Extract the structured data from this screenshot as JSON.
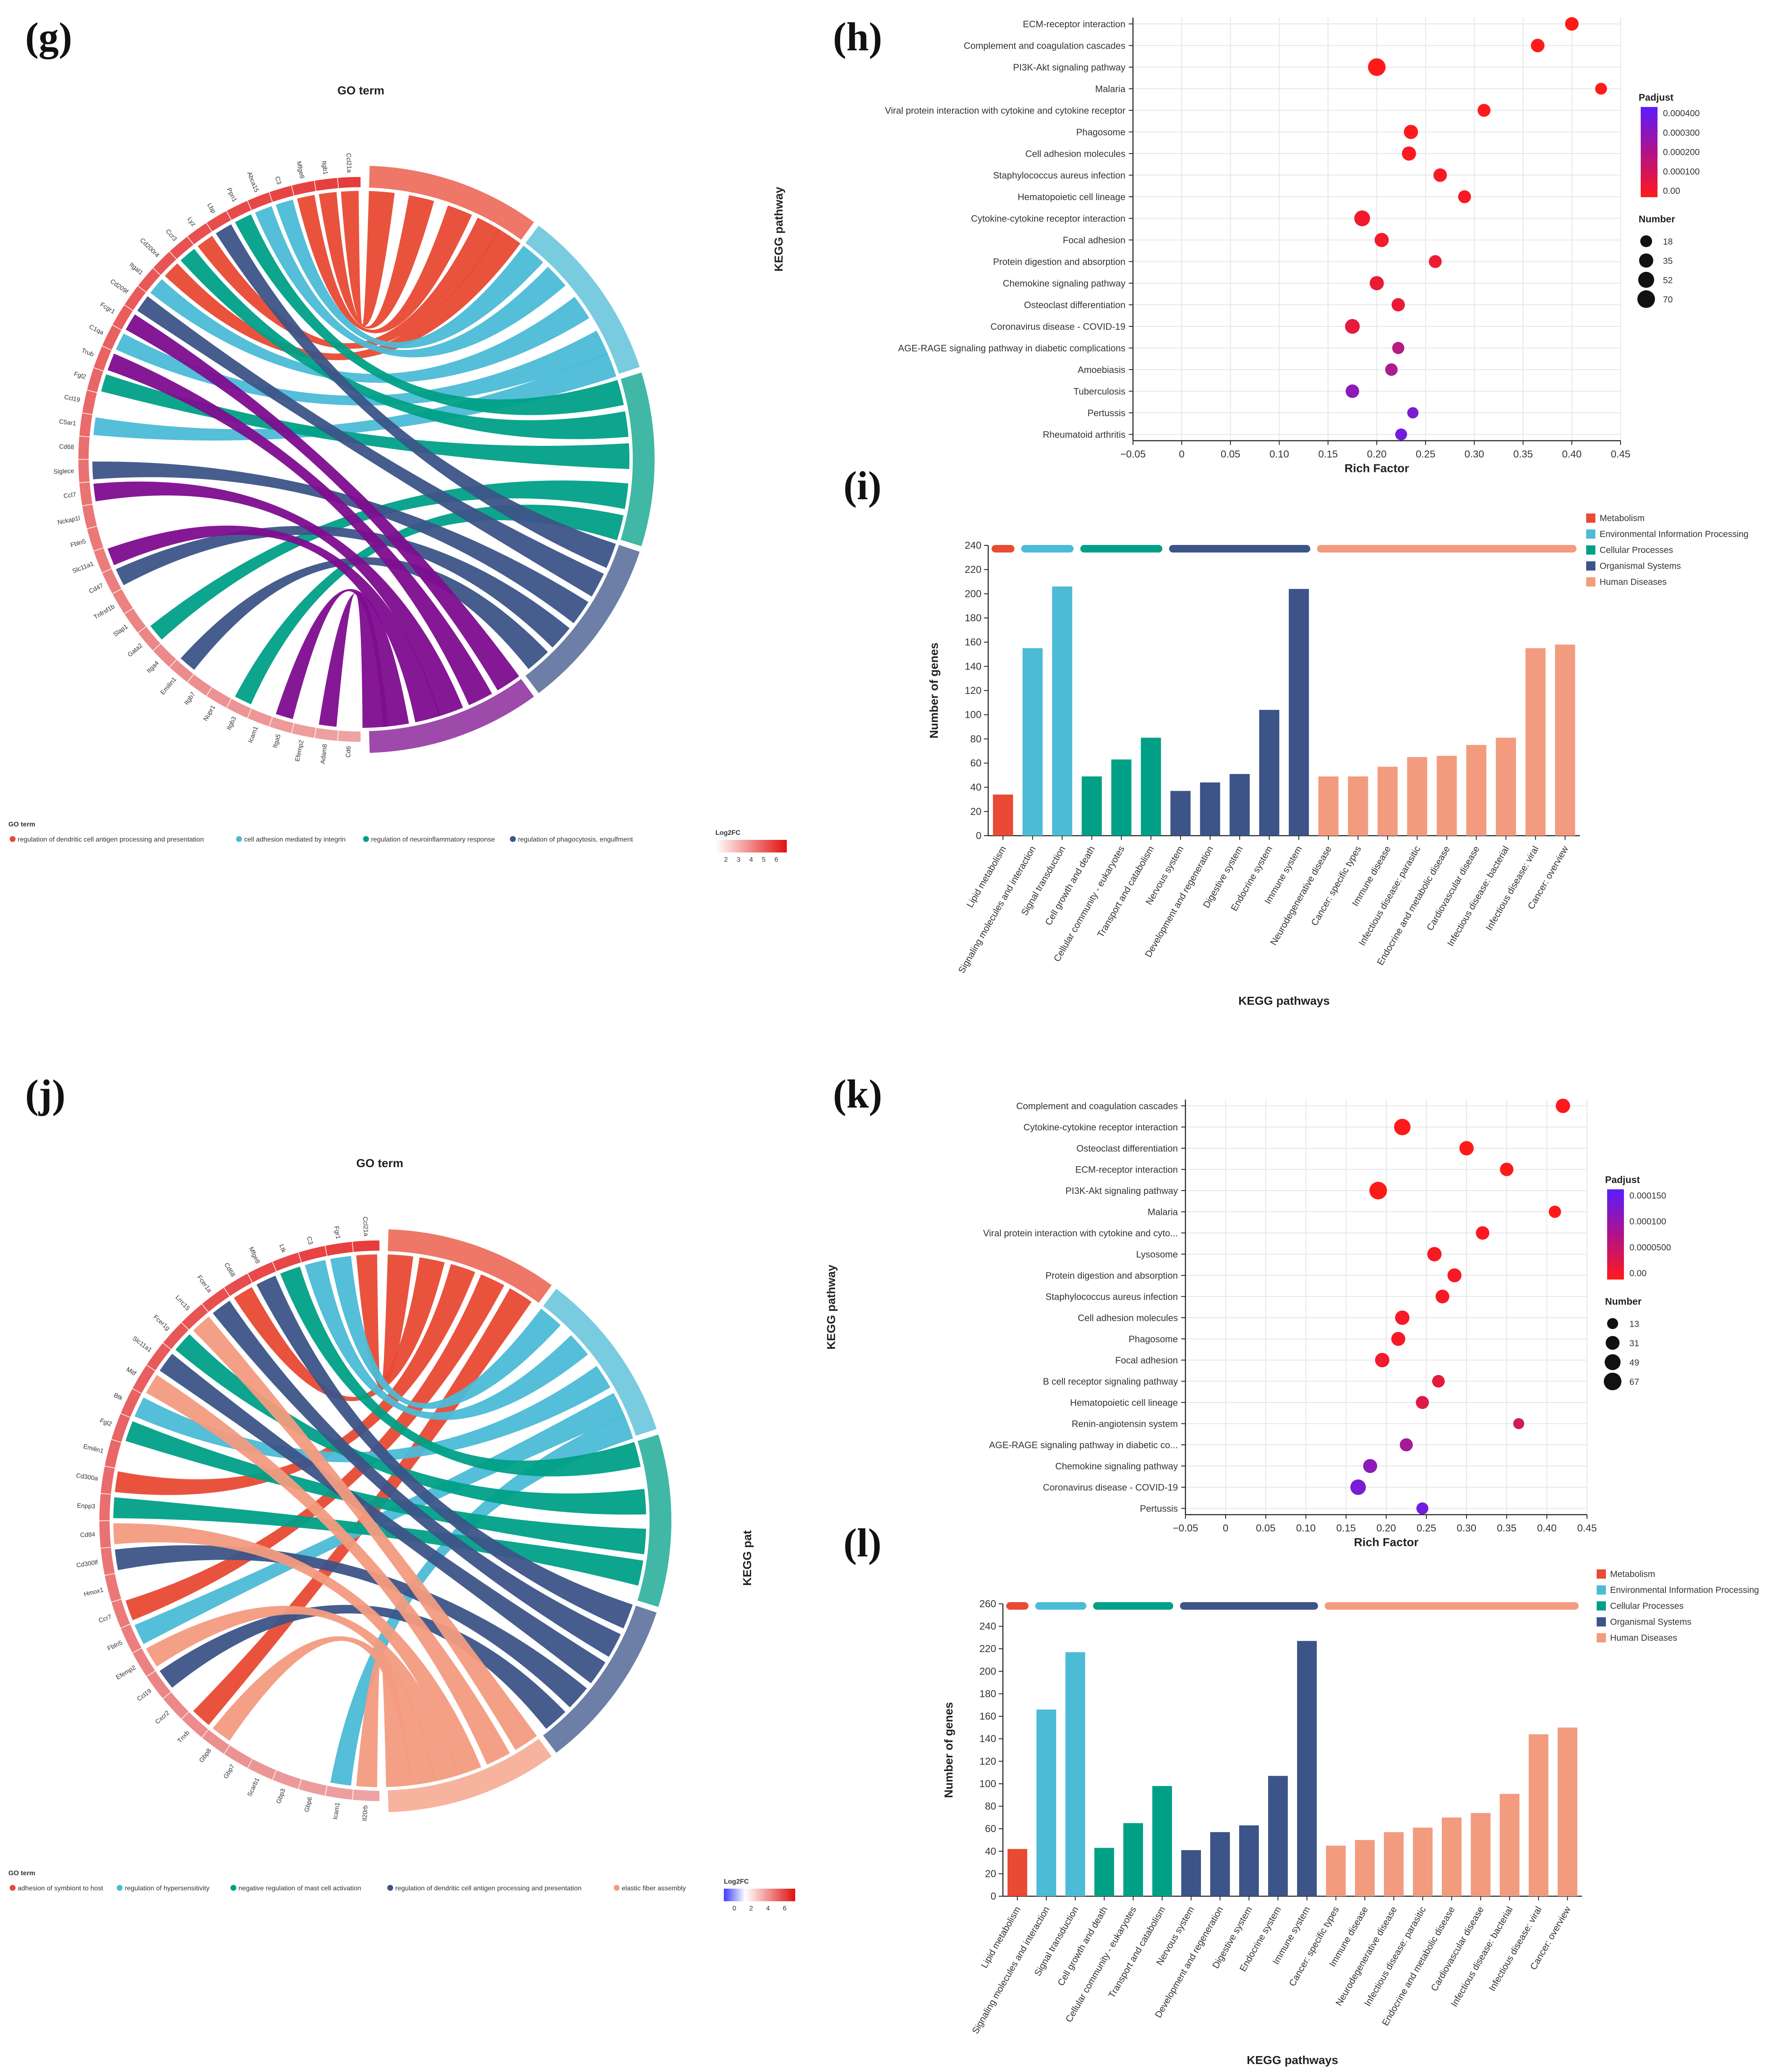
{
  "colors": {
    "red": "#e84a34",
    "cyan": "#4cbbd6",
    "teal": "#00a087",
    "navy": "#3c5488",
    "purple": "#7e0d8f",
    "salmon": "#f39b7f",
    "gene_fill": "#f0a6a6",
    "bubble_hi": "#ff1a1a",
    "bubble_lo": "#5a1cff"
  },
  "panels": {
    "g": {
      "label": "(g)",
      "title": "GO term",
      "genes": [
        "Cd6",
        "Adam8",
        "Efemp2",
        "Itga5",
        "Icam1",
        "Itgb3",
        "Nupr1",
        "Itgb7",
        "Emilin1",
        "Itga4",
        "Gata2",
        "Slap1",
        "Tnfrsf1b",
        "Cd47",
        "Slc11a1",
        "Fbln5",
        "Nckap1l",
        "Ccl7",
        "Siglece",
        "Cd68",
        "C5ar1",
        "Ccl19",
        "Fgl2",
        "Trub",
        "C1qa",
        "Fcgr1",
        "Cd209f",
        "Itgal1",
        "Cd200r4",
        "Ccr3",
        "Lyz",
        "Lbp",
        "Ppn1",
        "Abca15",
        "C3",
        "Mfge8",
        "Itgb1",
        "Ccl21a"
      ],
      "terms": [
        {
          "name": "regulation of dendritic cell antigen processing and presentation",
          "color": "#e84a34"
        },
        {
          "name": "cell adhesion mediated by integrin",
          "color": "#4cbbd6"
        },
        {
          "name": "regulation of neuroinflammatory response",
          "color": "#00a087"
        },
        {
          "name": "regulation of phagocytosis, engulfment",
          "color": "#3c5488"
        },
        {
          "name": "",
          "color": "#7e0d8f"
        }
      ],
      "legend_title": "GO term",
      "fc_title": "Log2FC",
      "fc_ticks": [
        "2",
        "3",
        "4",
        "5",
        "6"
      ]
    },
    "j": {
      "label": "(j)",
      "title": "GO term",
      "side_label": "KEGG pat",
      "genes": [
        "Il20rb",
        "Icam1",
        "Gbp6",
        "Gbp3",
        "Scarb1",
        "Gbp7",
        "Gbp8",
        "Tnxb",
        "Cxcr2",
        "Ccl19",
        "Efemp2",
        "Fbln5",
        "Ccr7",
        "Hmox1",
        "Cd300lf",
        "Cd84",
        "Enpp3",
        "Cd300a",
        "Emilin1",
        "Fgl2",
        "Btk",
        "Mitf",
        "Slc11a1",
        "Fcer1g",
        "Lrrc15",
        "Fcer1a",
        "Cd68",
        "Mfge8",
        "Ltk",
        "C3",
        "Fgr1",
        "Ccl21a"
      ],
      "terms": [
        {
          "name": "adhesion of symbiont to host",
          "color": "#e84a34"
        },
        {
          "name": "regulation of hypersensitivity",
          "color": "#4cbbd6"
        },
        {
          "name": "negative regulation of mast cell activation",
          "color": "#00a087"
        },
        {
          "name": "regulation of dendritic cell antigen processing and presentation",
          "color": "#3c5488"
        },
        {
          "name": "elastic fiber assembly",
          "color": "#f39b7f"
        }
      ],
      "legend_title": "GO term",
      "fc_title": "Log2FC",
      "fc_ticks": [
        "0",
        "2",
        "4",
        "6"
      ]
    },
    "h": {
      "label": "(h)",
      "chart_data": {
        "type": "scatter",
        "xlabel": "Rich Factor",
        "ylabel": "KEGG pathway",
        "xlim": [
          -0.05,
          0.45
        ],
        "xticks": [
          "−0.05",
          "0",
          "0.05",
          "0.10",
          "0.15",
          "0.20",
          "0.25",
          "0.30",
          "0.35",
          "0.40",
          "0.45"
        ],
        "pathways": [
          "ECM-receptor interaction",
          "Complement and coagulation cascades",
          "PI3K-Akt signaling pathway",
          "Malaria",
          "Viral protein interaction with cytokine and cytokine receptor",
          "Phagosome",
          "Cell adhesion molecules",
          "Staphylococcus aureus infection",
          "Hematopoietic cell lineage",
          "Cytokine-cytokine receptor interaction",
          "Focal adhesion",
          "Protein digestion and absorption",
          "Chemokine signaling pathway",
          "Osteoclast differentiation",
          "Coronavirus disease - COVID-19",
          "AGE-RAGE signaling pathway in diabetic complications",
          "Amoebiasis",
          "Tuberculosis",
          "Pertussis",
          "Rheumatoid arthritis"
        ],
        "rich_factor": [
          0.4,
          0.365,
          0.2,
          0.43,
          0.31,
          0.235,
          0.233,
          0.265,
          0.29,
          0.185,
          0.205,
          0.26,
          0.2,
          0.222,
          0.175,
          0.222,
          0.215,
          0.175,
          0.237,
          0.225
        ],
        "number": [
          30,
          30,
          70,
          18,
          25,
          35,
          35,
          30,
          25,
          50,
          35,
          25,
          35,
          28,
          40,
          20,
          22,
          30,
          15,
          18
        ],
        "padj_frac": [
          0.0,
          0.0,
          0.0,
          0.0,
          0.0,
          0.02,
          0.02,
          0.05,
          0.05,
          0.08,
          0.08,
          0.1,
          0.12,
          0.12,
          0.15,
          0.45,
          0.5,
          0.7,
          0.8,
          0.85
        ],
        "legend_padj_title": "Padjust",
        "legend_padj_ticks": [
          "0.000400",
          "0.000300",
          "0.000200",
          "0.000100",
          "0.00"
        ],
        "legend_num_title": "Number",
        "legend_num_values": [
          "18",
          "35",
          "52",
          "70"
        ]
      }
    },
    "k": {
      "label": "(k)",
      "chart_data": {
        "type": "scatter",
        "xlabel": "Rich Factor",
        "ylabel": "KEGG pathway",
        "xlim": [
          -0.05,
          0.45
        ],
        "xticks": [
          "−0.05",
          "0",
          "0.05",
          "0.10",
          "0.15",
          "0.20",
          "0.25",
          "0.30",
          "0.35",
          "0.40",
          "0.45"
        ],
        "pathways": [
          "Complement and coagulation cascades",
          "Cytokine-cytokine receptor interaction",
          "Osteoclast differentiation",
          "ECM-receptor interaction",
          "PI3K-Akt signaling pathway",
          "Malaria",
          "Viral protein interaction with cytokine and cyto...",
          "Lysosome",
          "Protein digestion and absorption",
          "Staphylococcus aureus infection",
          "Cell adhesion molecules",
          "Phagosome",
          "Focal adhesion",
          "B cell receptor signaling pathway",
          "Hematopoietic cell lineage",
          "Renin-angiotensin system",
          "AGE-RAGE signaling pathway in diabetic co...",
          "Chemokine signaling pathway",
          "Coronavirus disease - COVID-19",
          "Pertussis"
        ],
        "rich_factor": [
          0.42,
          0.22,
          0.3,
          0.35,
          0.19,
          0.41,
          0.32,
          0.26,
          0.285,
          0.27,
          0.22,
          0.215,
          0.195,
          0.265,
          0.245,
          0.365,
          0.225,
          0.18,
          0.165,
          0.245
        ],
        "number": [
          35,
          55,
          35,
          28,
          67,
          20,
          28,
          35,
          32,
          30,
          35,
          32,
          35,
          22,
          25,
          13,
          25,
          32,
          45,
          18
        ],
        "padj_frac": [
          0.0,
          0.0,
          0.0,
          0.0,
          0.0,
          0.0,
          0.02,
          0.05,
          0.05,
          0.05,
          0.05,
          0.05,
          0.08,
          0.15,
          0.2,
          0.3,
          0.55,
          0.7,
          0.8,
          0.85
        ],
        "legend_padj_title": "Padjust",
        "legend_padj_ticks": [
          "0.000150",
          "0.000100",
          "0.0000500",
          "0.00"
        ],
        "legend_num_title": "Number",
        "legend_num_values": [
          "13",
          "31",
          "49",
          "67"
        ]
      }
    },
    "i": {
      "label": "(i)",
      "chart_data": {
        "type": "bar",
        "xlabel": "KEGG pathways",
        "ylabel": "Number of genes",
        "ylim": [
          0,
          240
        ],
        "yticks": [
          0,
          20,
          40,
          60,
          80,
          100,
          120,
          140,
          160,
          180,
          200,
          220,
          240
        ],
        "categories": [
          "Lipid metabolism",
          "Signaling molecules and interaction",
          "Signal transduction",
          "Cell growth and death",
          "Cellular community - eukaryotes",
          "Transport and catabolism",
          "Nervous system",
          "Development and regeneration",
          "Digestive system",
          "Endocrine system",
          "Immune system",
          "Neurodegenerative disease",
          "Cancer: specific types",
          "Immune disease",
          "Infectious disease: parasitic",
          "Endocrine and metabolic disease",
          "Cardiovascular disease",
          "Infectious disease: bacterial",
          "Infectious disease: viral",
          "Cancer: overview"
        ],
        "values": [
          34,
          155,
          206,
          49,
          63,
          81,
          37,
          44,
          51,
          104,
          204,
          49,
          49,
          57,
          65,
          66,
          75,
          81,
          155,
          158
        ],
        "groups": [
          "Metabolism",
          "Environmental Information Processing",
          "Environmental Information Processing",
          "Cellular Processes",
          "Cellular Processes",
          "Cellular Processes",
          "Organismal Systems",
          "Organismal Systems",
          "Organismal Systems",
          "Organismal Systems",
          "Organismal Systems",
          "Human Diseases",
          "Human Diseases",
          "Human Diseases",
          "Human Diseases",
          "Human Diseases",
          "Human Diseases",
          "Human Diseases",
          "Human Diseases",
          "Human Diseases"
        ],
        "legend": [
          "Metabolism",
          "Environmental Information Processing",
          "Cellular Processes",
          "Organismal Systems",
          "Human Diseases"
        ]
      }
    },
    "l": {
      "label": "(l)",
      "chart_data": {
        "type": "bar",
        "xlabel": "KEGG pathways",
        "ylabel": "Number of genes",
        "ylim": [
          0,
          260
        ],
        "yticks": [
          0,
          20,
          40,
          60,
          80,
          100,
          120,
          140,
          160,
          180,
          200,
          220,
          240,
          260
        ],
        "categories": [
          "Lipid metabolism",
          "Signaling molecules and interaction",
          "Signal transduction",
          "Cell growth and death",
          "Cellular community - eukaryotes",
          "Transport and catabolism",
          "Nervous system",
          "Development and regeneration",
          "Digestive system",
          "Endocrine system",
          "Immune system",
          "Cancer: specific types",
          "Immune disease",
          "Neurodegenerative disease",
          "Infectious disease: parasitic",
          "Endocrine and metabolic disease",
          "Cardiovascular disease",
          "Infectious disease: bacterial",
          "Infectious disease: viral",
          "Cancer: overview"
        ],
        "values": [
          42,
          166,
          217,
          43,
          65,
          98,
          41,
          57,
          63,
          107,
          227,
          45,
          50,
          57,
          61,
          70,
          74,
          91,
          144,
          150
        ],
        "groups": [
          "Metabolism",
          "Environmental Information Processing",
          "Environmental Information Processing",
          "Cellular Processes",
          "Cellular Processes",
          "Cellular Processes",
          "Organismal Systems",
          "Organismal Systems",
          "Organismal Systems",
          "Organismal Systems",
          "Organismal Systems",
          "Human Diseases",
          "Human Diseases",
          "Human Diseases",
          "Human Diseases",
          "Human Diseases",
          "Human Diseases",
          "Human Diseases",
          "Human Diseases",
          "Human Diseases"
        ],
        "legend": [
          "Metabolism",
          "Environmental Information Processing",
          "Cellular Processes",
          "Organismal Systems",
          "Human Diseases"
        ]
      }
    }
  }
}
